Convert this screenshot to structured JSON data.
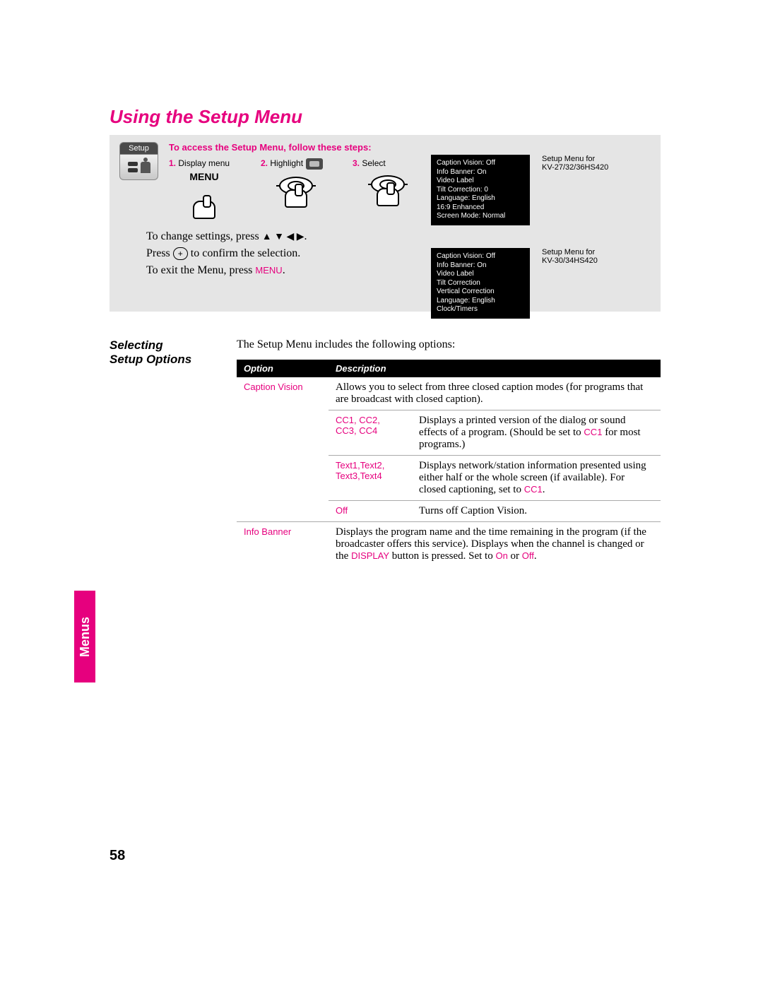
{
  "colors": {
    "accent": "#e6007e",
    "graybox": "#e5e5e5",
    "black": "#000000"
  },
  "title": "Using the Setup Menu",
  "access_heading": "To access the Setup Menu, follow these steps:",
  "setup_icon_label": "Setup",
  "steps": {
    "s1_num": "1.",
    "s1_label": "Display menu",
    "s1_menu_word": "MENU",
    "s2_num": "2.",
    "s2_label": "Highlight",
    "s3_num": "3.",
    "s3_label": "Select"
  },
  "osd1": {
    "lines": [
      "Caption Vision: Off",
      "Info Banner: On",
      "Video Label",
      "Tilt Correction: 0",
      "Language: English",
      "16:9 Enhanced",
      "Screen Mode: Normal"
    ],
    "caption_a": "Setup Menu for",
    "caption_b": "KV-27/32/36HS420"
  },
  "osd2": {
    "lines": [
      "Caption Vision: Off",
      "Info Banner: On",
      "Video Label",
      "Tilt Correction",
      "Vertical Correction",
      "Language: English",
      "Clock/Timers"
    ],
    "caption_a": "Setup Menu for",
    "caption_b": "KV-30/34HS420"
  },
  "instructions": {
    "line1_pre": "To change settings, press ",
    "arrows": "▲ ▼ ◀ ▶",
    "line1_post": ".",
    "line2_pre": "Press ",
    "btn": "+",
    "line2_post": " to confirm the selection.",
    "line3_pre": "To exit the Menu, press ",
    "menu_word": "MENU",
    "line3_post": "."
  },
  "side_heading_a": "Selecting",
  "side_heading_b": "Setup Options",
  "intro": "The Setup Menu includes the following options:",
  "table": {
    "h1": "Option",
    "h2": "Description",
    "caption_vision": {
      "name": "Caption Vision",
      "desc": "Allows you to select from three closed caption modes (for programs that are broadcast with closed caption).",
      "rows": [
        {
          "k1": "CC1, CC2,",
          "k2": "CC3, CC4",
          "v_pre": "Displays a printed version of the dialog or sound effects of a program. (Should be set to ",
          "v_pink": "CC1",
          "v_post": " for most programs.)"
        },
        {
          "k1": "Text1,Text2,",
          "k2": "Text3,Text4",
          "v_pre": "Displays network/station information presented using either half or the whole screen (if available). For closed captioning, set to ",
          "v_pink": "CC1",
          "v_post": "."
        },
        {
          "k1": "Off",
          "k2": "",
          "v_pre": "Turns off Caption Vision.",
          "v_pink": "",
          "v_post": ""
        }
      ]
    },
    "info_banner": {
      "name": "Info Banner",
      "d1": "Displays the program name and the time remaining in the program (if the broadcaster offers this service). Displays when the channel is changed or the ",
      "pink1": "DISPLAY",
      "d2": " button is pressed. Set to ",
      "pink2": "On",
      "d3": " or ",
      "pink3": "Off",
      "d4": "."
    }
  },
  "tab_label": "Menus",
  "page_number": "58"
}
